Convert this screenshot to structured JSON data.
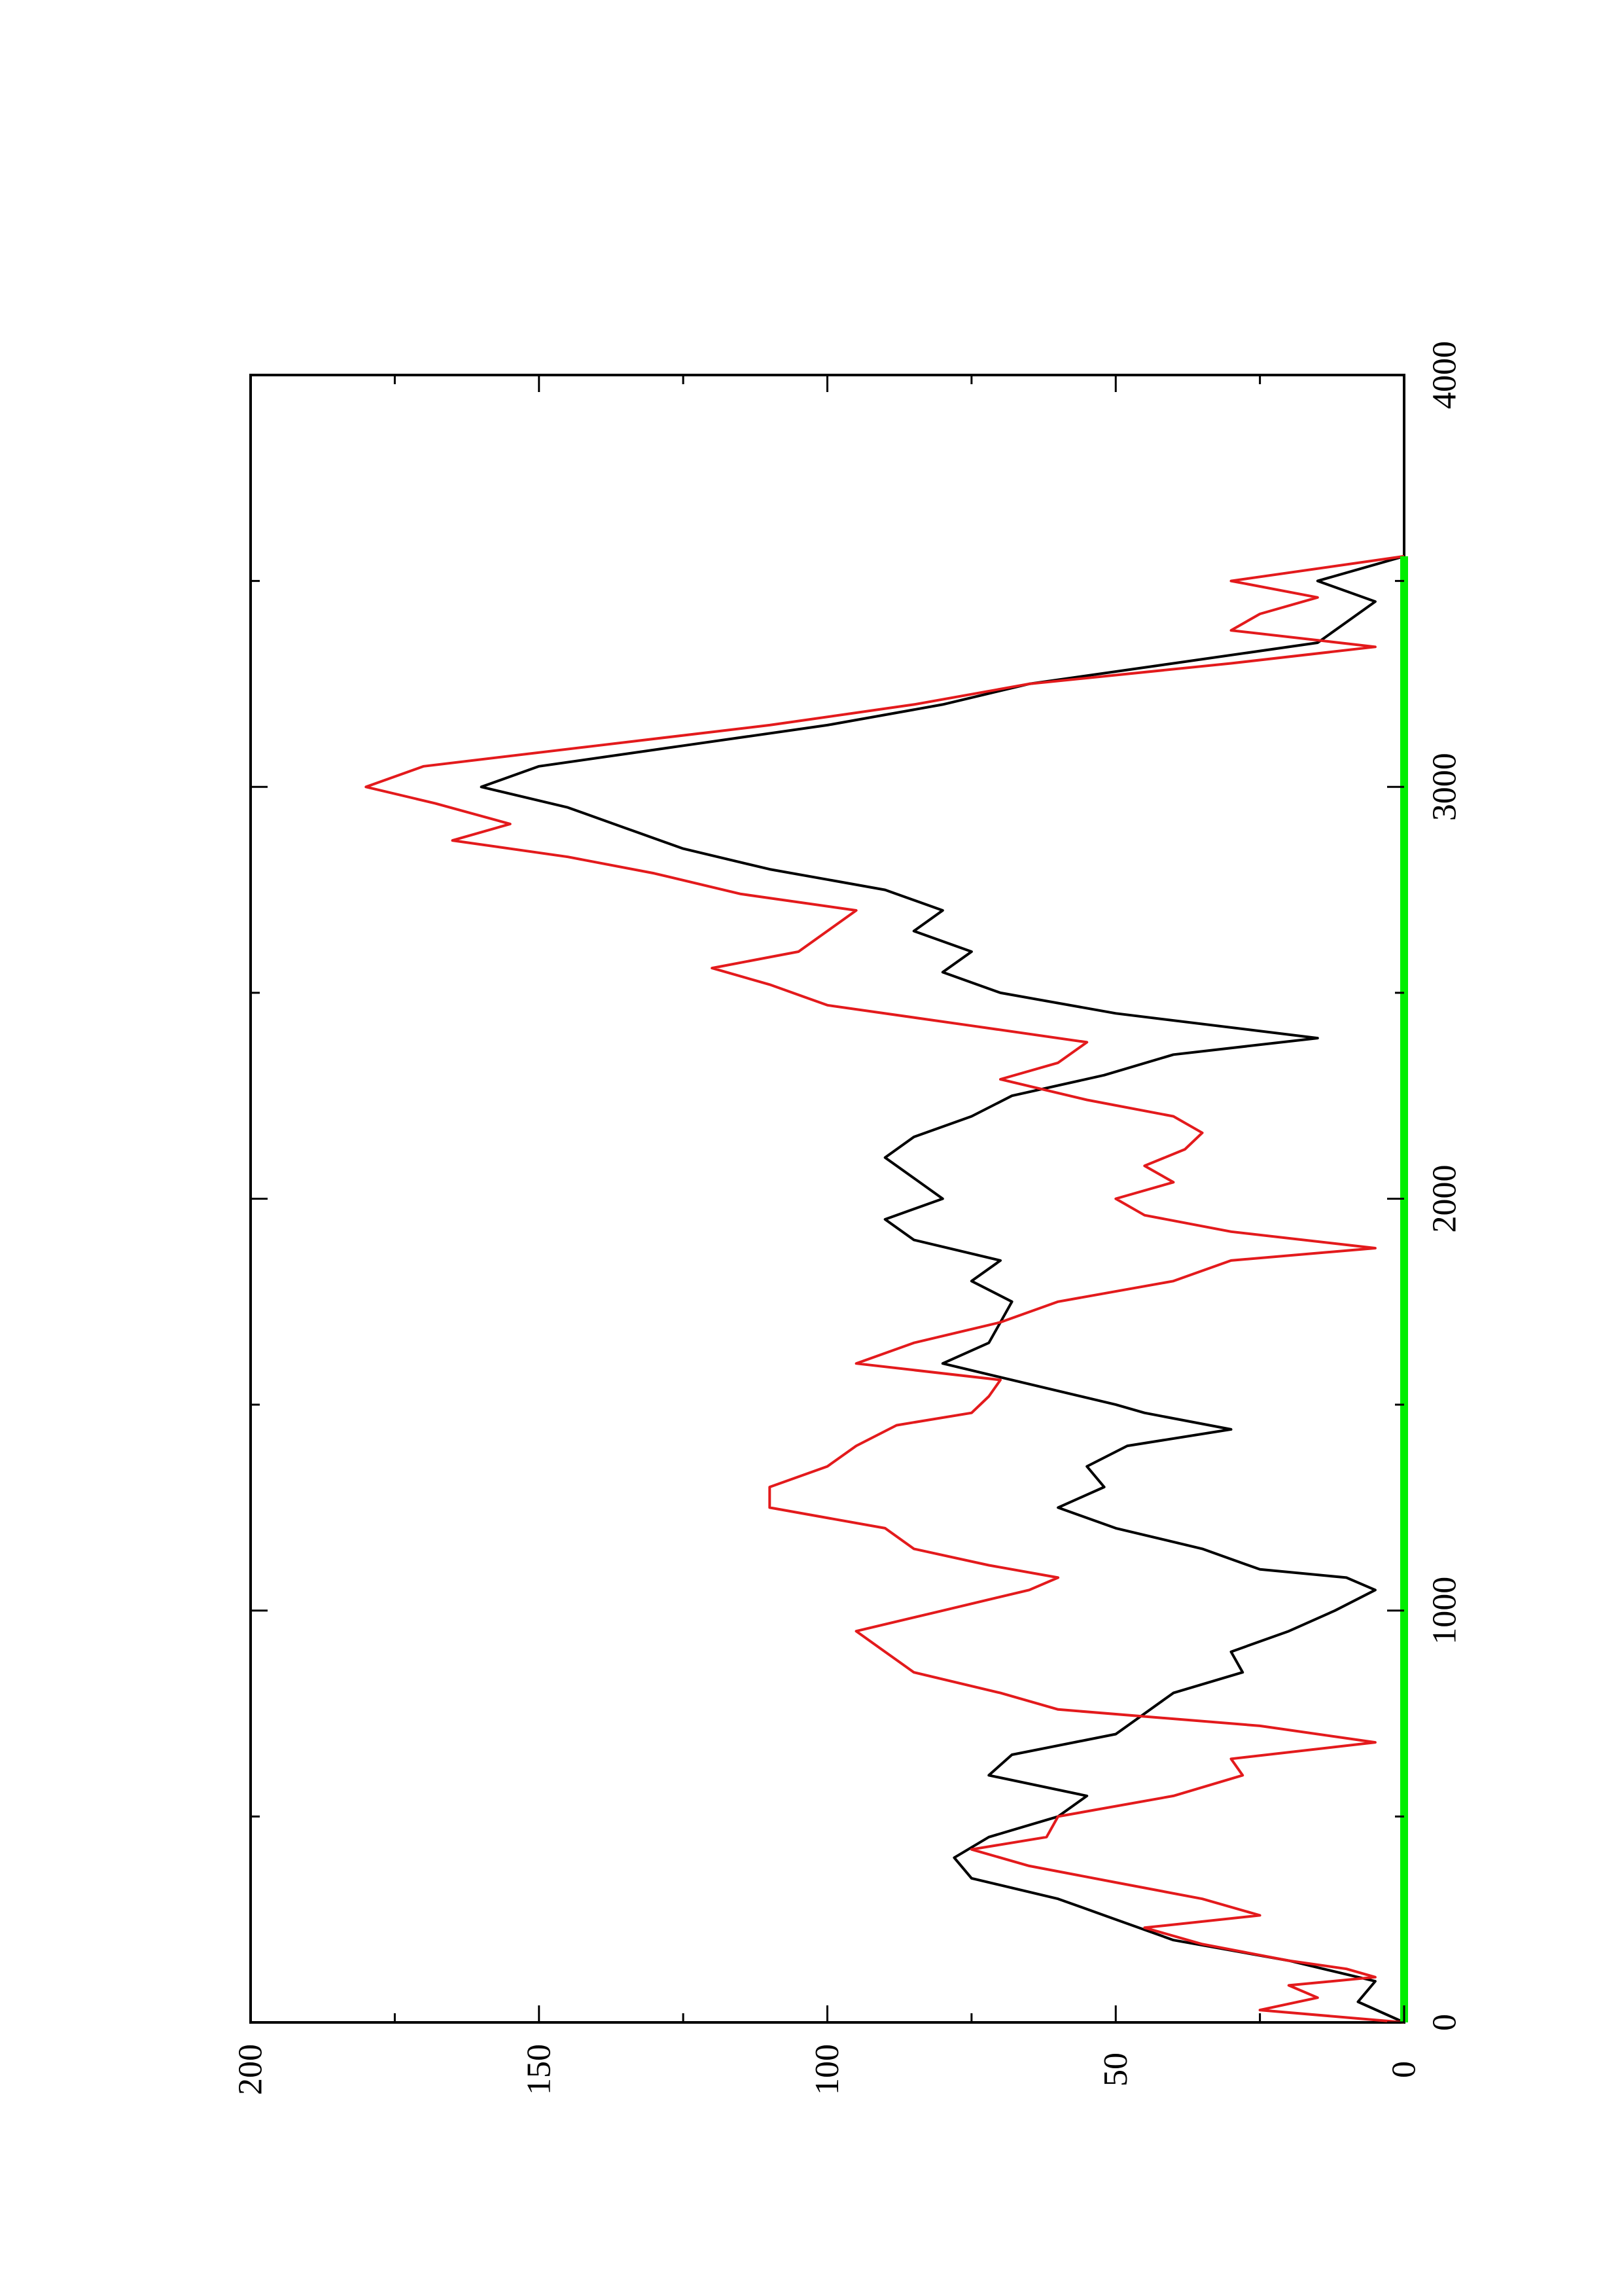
{
  "chart_data": {
    "type": "line",
    "title": "",
    "xlabel": "",
    "ylabel": "",
    "xlim": [
      0,
      4000
    ],
    "ylim": [
      0,
      200
    ],
    "x_ticks": [
      0,
      1000,
      2000,
      3000,
      4000
    ],
    "x_tick_labels": [
      "0",
      "1000",
      "2000",
      "3000",
      "4000"
    ],
    "y_ticks": [
      0,
      50,
      100,
      150,
      200
    ],
    "y_tick_labels": [
      "0",
      "50",
      "100",
      "150",
      "200"
    ],
    "grid": false,
    "legend": "none",
    "orientation": "rotated-90-ccw",
    "series": [
      {
        "color": "#000000",
        "x": [
          0,
          50,
          100,
          150,
          200,
          250,
          300,
          350,
          400,
          450,
          500,
          550,
          600,
          650,
          700,
          750,
          800,
          850,
          900,
          950,
          1000,
          1050,
          1080,
          1100,
          1150,
          1200,
          1250,
          1300,
          1350,
          1400,
          1440,
          1480,
          1500,
          1550,
          1600,
          1650,
          1700,
          1750,
          1800,
          1850,
          1900,
          1950,
          2000,
          2050,
          2100,
          2150,
          2200,
          2250,
          2300,
          2350,
          2390,
          2450,
          2500,
          2550,
          2600,
          2650,
          2700,
          2750,
          2800,
          2850,
          2900,
          2950,
          3000,
          3050,
          3100,
          3150,
          3200,
          3250,
          3300,
          3350,
          3400,
          3450,
          3500,
          3560
        ],
        "values": [
          0,
          8,
          5,
          20,
          40,
          50,
          60,
          75,
          78,
          72,
          60,
          55,
          72,
          68,
          50,
          45,
          40,
          28,
          30,
          20,
          12,
          5,
          10,
          25,
          35,
          50,
          60,
          52,
          55,
          48,
          30,
          45,
          50,
          65,
          80,
          72,
          70,
          68,
          75,
          70,
          85,
          90,
          80,
          85,
          90,
          85,
          75,
          68,
          52,
          40,
          15,
          50,
          70,
          80,
          75,
          85,
          80,
          90,
          110,
          125,
          135,
          145,
          160,
          150,
          125,
          100,
          80,
          65,
          40,
          15,
          10,
          5,
          15,
          0
        ]
      },
      {
        "color": "#e31a1c",
        "x": [
          0,
          30,
          60,
          90,
          110,
          130,
          150,
          190,
          230,
          260,
          300,
          340,
          380,
          420,
          450,
          500,
          550,
          600,
          640,
          680,
          720,
          760,
          800,
          850,
          900,
          950,
          1000,
          1050,
          1080,
          1110,
          1150,
          1200,
          1250,
          1300,
          1350,
          1400,
          1450,
          1480,
          1520,
          1560,
          1600,
          1650,
          1700,
          1750,
          1800,
          1850,
          1880,
          1920,
          1960,
          2000,
          2040,
          2080,
          2120,
          2160,
          2200,
          2240,
          2290,
          2330,
          2380,
          2420,
          2470,
          2520,
          2560,
          2600,
          2650,
          2700,
          2740,
          2790,
          2830,
          2870,
          2910,
          2960,
          3000,
          3050,
          3100,
          3150,
          3200,
          3250,
          3300,
          3340,
          3380,
          3420,
          3460,
          3500,
          3560
        ],
        "values": [
          0,
          25,
          15,
          20,
          5,
          10,
          20,
          35,
          45,
          25,
          35,
          50,
          65,
          75,
          62,
          60,
          40,
          28,
          30,
          5,
          25,
          60,
          70,
          85,
          90,
          95,
          80,
          65,
          60,
          72,
          85,
          90,
          110,
          110,
          100,
          95,
          88,
          75,
          72,
          70,
          95,
          85,
          70,
          60,
          40,
          30,
          5,
          30,
          45,
          50,
          40,
          45,
          38,
          35,
          40,
          55,
          70,
          60,
          55,
          75,
          100,
          110,
          120,
          105,
          100,
          95,
          115,
          130,
          145,
          165,
          155,
          168,
          180,
          170,
          140,
          110,
          85,
          65,
          30,
          5,
          30,
          25,
          15,
          30,
          0
        ]
      },
      {
        "color": "#00ee00",
        "x": [
          0,
          3560
        ],
        "values": [
          0,
          0
        ]
      }
    ]
  }
}
